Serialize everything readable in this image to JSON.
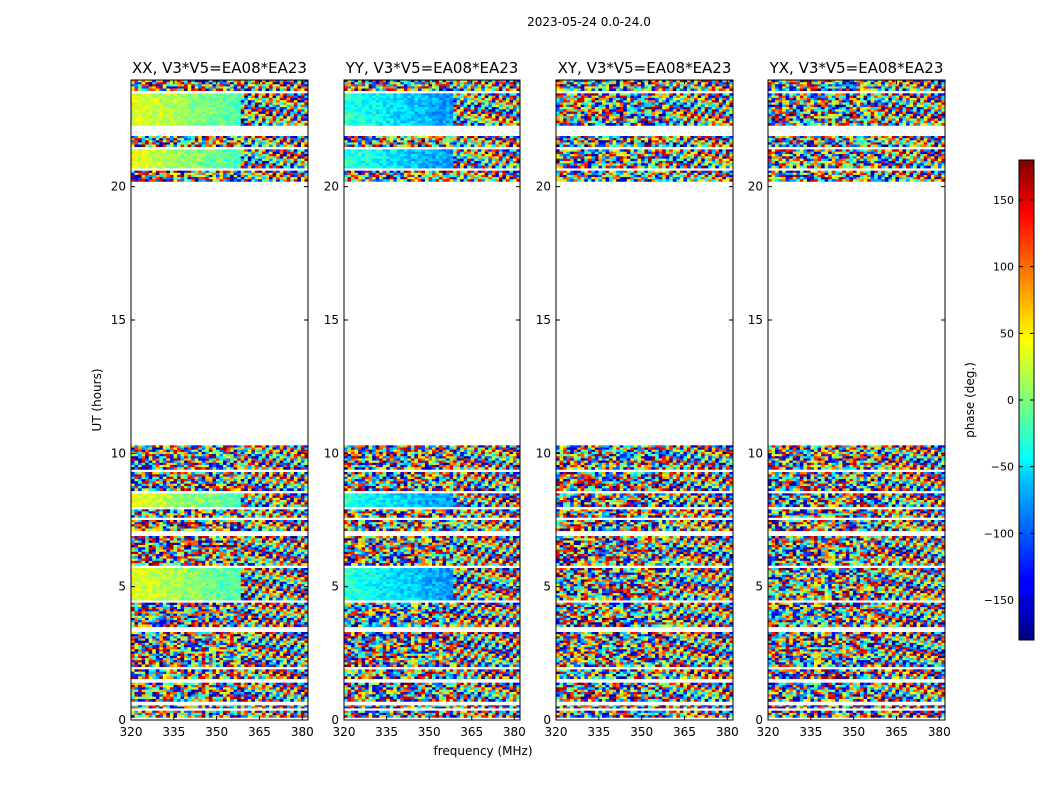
{
  "chart_data": {
    "type": "heatmap",
    "suptitle": "2023-05-24 0.0-24.0",
    "xlabel": "frequency (MHz)",
    "ylabel": "UT (hours)",
    "xlim": [
      320,
      382
    ],
    "ylim": [
      0,
      24
    ],
    "xticks": [
      "320",
      "335",
      "350",
      "365",
      "380"
    ],
    "yticks": [
      "0",
      "5",
      "10",
      "15",
      "20"
    ],
    "panels": [
      {
        "title": "XX, V3*V5=EA08*EA23"
      },
      {
        "title": "YY, V3*V5=EA08*EA23"
      },
      {
        "title": "XY, V3*V5=EA08*EA23"
      },
      {
        "title": "YX, V3*V5=EA08*EA23"
      }
    ],
    "colorbar": {
      "label": "phase (deg.)",
      "range": [
        -180,
        180
      ],
      "ticks": [
        "150",
        "100",
        "50",
        "0",
        "−50",
        "−100",
        "−150"
      ],
      "colormap": "jet"
    },
    "data_gaps_hours": [
      [
        10.3,
        20.2
      ]
    ]
  }
}
